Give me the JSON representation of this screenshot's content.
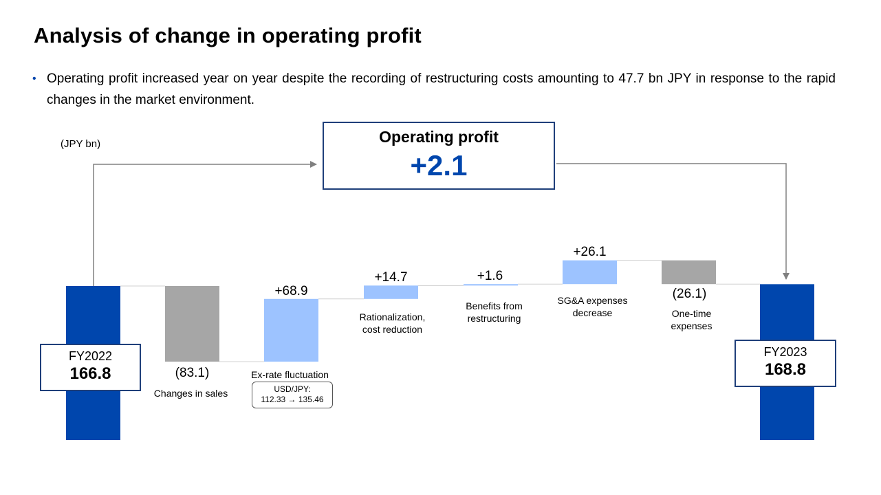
{
  "title": "Analysis of change in operating profit",
  "bullet": "Operating profit increased year on year despite the recording of restructuring costs amounting to 47.7 bn JPY in response to the rapid changes in the market environment.",
  "unit": "(JPY bn)",
  "op_box": {
    "title": "Operating profit",
    "value": "+2.1"
  },
  "fy_start": {
    "year": "FY2022",
    "value": "166.8"
  },
  "fy_end": {
    "year": "FY2023",
    "value": "168.8"
  },
  "fx_note": {
    "line1": "USD/JPY:",
    "line2": "112.33 → 135.46"
  },
  "colors": {
    "total": "#0046ad",
    "increase": "#9dc3ff",
    "decrease": "#a6a6a6",
    "box_border": "#1f3f7a",
    "arrow": "#808080"
  },
  "chart_data": {
    "type": "bar",
    "subtype": "waterfall",
    "ylabel": "(JPY bn)",
    "steps": [
      {
        "category": "FY2022",
        "value": 166.8,
        "kind": "total",
        "value_label": "166.8",
        "label": ""
      },
      {
        "category": "Changes in sales",
        "value": -83.1,
        "kind": "decrease",
        "value_label": "(83.1)",
        "label": "Changes in sales"
      },
      {
        "category": "Ex-rate fluctuation",
        "value": 68.9,
        "kind": "increase",
        "value_label": "+68.9",
        "label": "Ex-rate fluctuation"
      },
      {
        "category": "Rationalization, cost reduction",
        "value": 14.7,
        "kind": "increase",
        "value_label": "+14.7",
        "label": "Rationalization,\ncost reduction"
      },
      {
        "category": "Benefits from restructuring",
        "value": 1.6,
        "kind": "increase",
        "value_label": "+1.6",
        "label": "Benefits from\nrestructuring"
      },
      {
        "category": "SG&A expenses decrease",
        "value": 26.1,
        "kind": "increase",
        "value_label": "+26.1",
        "label": "SG&A expenses\ndecrease"
      },
      {
        "category": "One-time expenses",
        "value": -26.1,
        "kind": "decrease",
        "value_label": "(26.1)",
        "label": "One-time\nexpenses"
      },
      {
        "category": "FY2023",
        "value": 168.8,
        "kind": "total",
        "value_label": "168.8",
        "label": ""
      }
    ]
  }
}
